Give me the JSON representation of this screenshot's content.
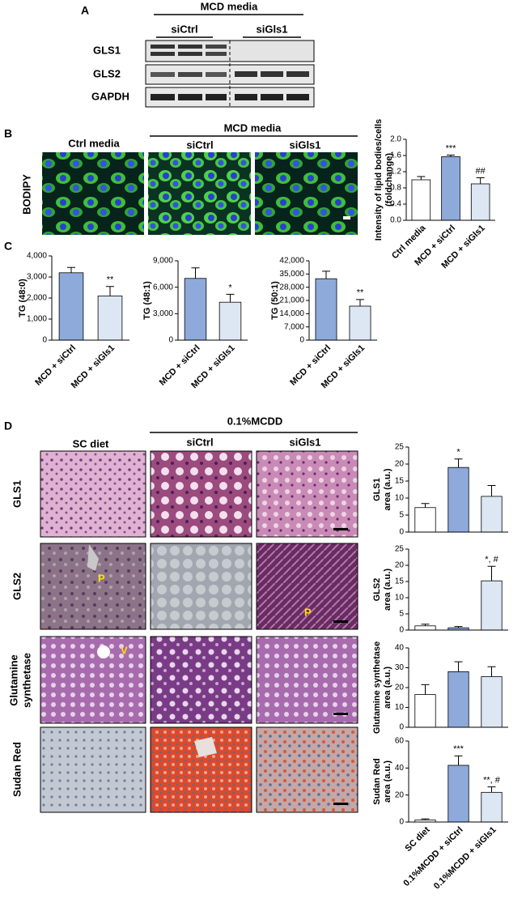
{
  "blot": {
    "label": "A",
    "group": "MCD media",
    "conditions": [
      "siCtrl",
      "siGls1"
    ],
    "proteins": [
      "GLS1",
      "GLS2",
      "GAPDH"
    ]
  },
  "microscopy": {
    "label": "B",
    "stain": "BODIPY",
    "control": "Ctrl media",
    "group": "MCD media",
    "conditions": [
      "siCtrl",
      "siGls1"
    ]
  },
  "panel_c": {
    "label": "C"
  },
  "histology": {
    "label": "D",
    "control": "SC diet",
    "group": "0.1%MCDD",
    "conditions": [
      "siCtrl",
      "siGls1"
    ],
    "stains": [
      [
        "GLS1"
      ],
      [
        "GLS2"
      ],
      [
        "Glutamine",
        "synthetase"
      ],
      [
        "Sudan Red"
      ]
    ],
    "markers": [
      "P",
      "P",
      "V"
    ]
  },
  "chart_data": [
    {
      "type": "bar",
      "ylabel": [
        "Intensity of lipid bodies/cells",
        "(foldchange)"
      ],
      "categories": [
        "Ctrl media",
        "MCD + siCtrl",
        "MCD + siGls1"
      ],
      "values": [
        1.0,
        1.57,
        0.9
      ],
      "errors": [
        0.08,
        0.04,
        0.15
      ],
      "value_annotations": [
        null,
        "***",
        "##"
      ],
      "colors": [
        "#ffffff",
        "#8eaadb",
        "#dde7f4"
      ],
      "ylim": [
        0,
        2
      ],
      "yticks": [
        {
          "value": 0,
          "label": "0.0"
        },
        0.4,
        0.8,
        1.2,
        1.6,
        {
          "value": 2,
          "label": "2.0"
        }
      ]
    },
    {
      "type": "bar",
      "ylabel": [
        "TG (48:0)"
      ],
      "categories": [
        "MCD + siCtrl",
        "MCD + siGls1"
      ],
      "values": [
        3200,
        2100
      ],
      "errors": [
        250,
        450
      ],
      "value_annotations": [
        null,
        "**"
      ],
      "colors": [
        "#8eaadb",
        "#dde7f4"
      ],
      "ylim": [
        0,
        4000
      ],
      "yticks": [
        0,
        {
          "value": 1000,
          "label": "1,000"
        },
        {
          "value": 2000,
          "label": "2,000"
        },
        {
          "value": 3000,
          "label": "3,000"
        },
        {
          "value": 4000,
          "label": "4,000"
        }
      ]
    },
    {
      "type": "bar",
      "ylabel": [
        "TG (48:1)"
      ],
      "categories": [
        "MCD + siCtrl",
        "MCD + siGls1"
      ],
      "values": [
        7000,
        4300
      ],
      "errors": [
        1200,
        900
      ],
      "value_annotations": [
        null,
        "*"
      ],
      "colors": [
        "#8eaadb",
        "#dde7f4"
      ],
      "ylim": [
        0,
        9000
      ],
      "yticks": [
        0,
        {
          "value": 3000,
          "label": "3,000"
        },
        {
          "value": 6000,
          "label": "6,000"
        },
        {
          "value": 9000,
          "label": "9,000"
        }
      ]
    },
    {
      "type": "bar",
      "ylabel": [
        "TG (50:1)"
      ],
      "categories": [
        "MCD + siCtrl",
        "MCD + siGls1"
      ],
      "values": [
        32500,
        18000
      ],
      "errors": [
        4000,
        3500
      ],
      "value_annotations": [
        null,
        "**"
      ],
      "colors": [
        "#8eaadb",
        "#dde7f4"
      ],
      "ylim": [
        0,
        42000
      ],
      "yticks": [
        0,
        {
          "value": 7000,
          "label": "7,000"
        },
        {
          "value": 14000,
          "label": "14,000"
        },
        {
          "value": 21000,
          "label": "21,000"
        },
        {
          "value": 28000,
          "label": "28,000"
        },
        {
          "value": 35000,
          "label": "35,000"
        },
        {
          "value": 42000,
          "label": "42,000"
        }
      ]
    },
    {
      "type": "bar",
      "ylabel": [
        "GLS1",
        "area (a.u.)"
      ],
      "values": [
        7.2,
        19,
        10.5
      ],
      "errors": [
        1.2,
        2.5,
        3.2
      ],
      "value_annotations": [
        null,
        "*",
        null
      ],
      "colors": [
        "#ffffff",
        "#8eaadb",
        "#dde7f4"
      ],
      "ylim": [
        0,
        25
      ],
      "yticks": [
        0,
        5,
        10,
        15,
        20,
        25
      ]
    },
    {
      "type": "bar",
      "ylabel": [
        "GLS2",
        "area (a.u.)"
      ],
      "values": [
        1.3,
        0.7,
        15.2
      ],
      "errors": [
        0.5,
        0.4,
        4.5
      ],
      "value_annotations": [
        null,
        null,
        "*, #"
      ],
      "colors": [
        "#ffffff",
        "#8eaadb",
        "#dde7f4"
      ],
      "ylim": [
        0,
        25
      ],
      "yticks": [
        0,
        5,
        10,
        15,
        20,
        25
      ]
    },
    {
      "type": "bar",
      "ylabel": [
        "Glutamine synthetase",
        "area (a.u.)"
      ],
      "values": [
        16.5,
        28,
        25.5
      ],
      "errors": [
        5,
        5,
        5
      ],
      "value_annotations": [
        null,
        null,
        null
      ],
      "colors": [
        "#ffffff",
        "#8eaadb",
        "#dde7f4"
      ],
      "ylim": [
        0,
        40
      ],
      "yticks": [
        0,
        10,
        20,
        30,
        40
      ]
    },
    {
      "type": "bar",
      "ylabel": [
        "Sudan Red",
        "area (a.u.)"
      ],
      "categories": [
        "SC diet",
        "0.1%MCDD + siCtrl",
        "0.1%MCDD + siGls1"
      ],
      "values": [
        1.5,
        42,
        22
      ],
      "errors": [
        0.8,
        7,
        4
      ],
      "value_annotations": [
        null,
        "***",
        "**, #"
      ],
      "colors": [
        "#ffffff",
        "#8eaadb",
        "#dde7f4"
      ],
      "ylim": [
        0,
        60
      ],
      "yticks": [
        0,
        20,
        40,
        60
      ]
    }
  ]
}
